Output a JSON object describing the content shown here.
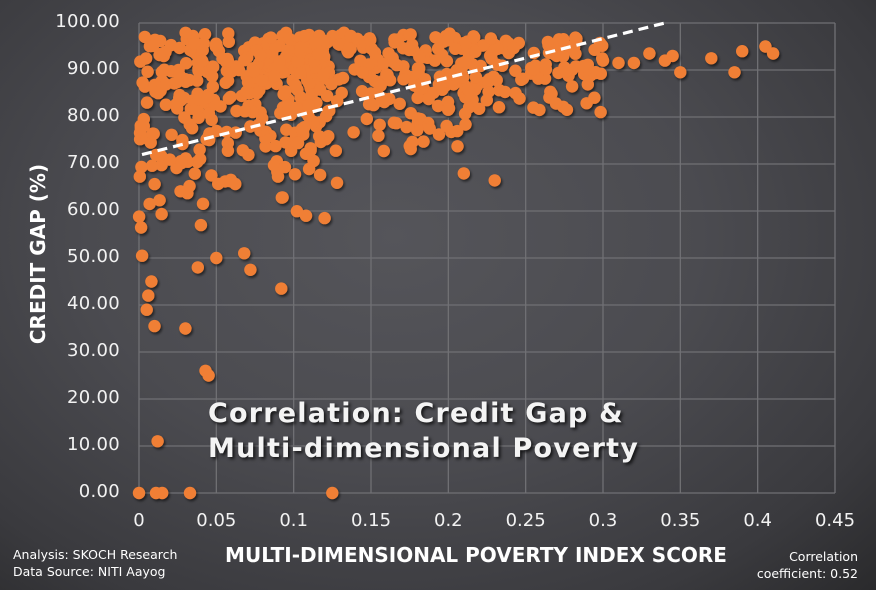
{
  "chart_data": {
    "type": "scatter",
    "title": "Correlation: Credit Gap & Multi-dimensional Poverty",
    "xlabel": "MULTI-DIMENSIONAL POVERTY INDEX SCORE",
    "ylabel": "CREDIT GAP (%)",
    "xlim": [
      0,
      0.45
    ],
    "ylim": [
      0,
      100
    ],
    "x_ticks": [
      "0",
      "0.05",
      "0.1",
      "0.15",
      "0.2",
      "0.25",
      "0.3",
      "0.35",
      "0.4",
      "0.45"
    ],
    "y_ticks": [
      "0.00",
      "10.00",
      "20.00",
      "30.00",
      "40.00",
      "50.00",
      "60.00",
      "70.00",
      "80.00",
      "90.00",
      "100.00"
    ],
    "grid": true,
    "legend": "none",
    "marker_color": "#f07f35",
    "trendline": {
      "style": "dashed",
      "color": "#ffffff",
      "x": [
        0,
        0.34
      ],
      "y": [
        72,
        100
      ]
    },
    "correlation_coefficient": 0.52,
    "outlier_points": [
      [
        0,
        0
      ],
      [
        0.011,
        0
      ],
      [
        0.015,
        0
      ],
      [
        0.033,
        0
      ],
      [
        0.125,
        0
      ],
      [
        0.012,
        11
      ],
      [
        0.043,
        26
      ],
      [
        0.045,
        25
      ],
      [
        0.03,
        35
      ],
      [
        0.01,
        35.5
      ],
      [
        0.005,
        39
      ],
      [
        0.092,
        43.5
      ],
      [
        0.038,
        48
      ],
      [
        0.05,
        50
      ],
      [
        0.072,
        47.5
      ],
      [
        0.068,
        51
      ],
      [
        0.108,
        59
      ],
      [
        0.12,
        58.5
      ],
      [
        0.128,
        66
      ],
      [
        0.21,
        68
      ],
      [
        0.23,
        66.5
      ],
      [
        0.04,
        57
      ],
      [
        0.002,
        50.5
      ],
      [
        0.008,
        45
      ],
      [
        0.006,
        42
      ],
      [
        0.27,
        93
      ],
      [
        0.3,
        92
      ],
      [
        0.32,
        91.5
      ],
      [
        0.34,
        92
      ],
      [
        0.35,
        89.5
      ],
      [
        0.37,
        92.5
      ],
      [
        0.385,
        89.5
      ],
      [
        0.39,
        94
      ],
      [
        0.405,
        95
      ],
      [
        0.41,
        93.5
      ],
      [
        0.345,
        93
      ],
      [
        0.33,
        93.5
      ],
      [
        0.31,
        91.5
      ],
      [
        0.28,
        86.5
      ],
      [
        0.255,
        82
      ]
    ],
    "dense_clusters": [
      {
        "x_range": [
          0,
          0.12
        ],
        "y_range": [
          55,
          98
        ],
        "approx_points": 320
      },
      {
        "x_range": [
          0.1,
          0.22
        ],
        "y_range": [
          72,
          98
        ],
        "approx_points": 220
      },
      {
        "x_range": [
          0.2,
          0.3
        ],
        "y_range": [
          80,
          97
        ],
        "approx_points": 110
      }
    ]
  },
  "annotations": {
    "source_line1": "Analysis: SKOCH Research",
    "source_line2": "Data Source: NITI Aayog",
    "corr_line1": "Correlation",
    "corr_line2": "coefficient: 0.52"
  },
  "title_lines": [
    "Correlation: Credit Gap &",
    "Multi-dimensional Poverty"
  ]
}
